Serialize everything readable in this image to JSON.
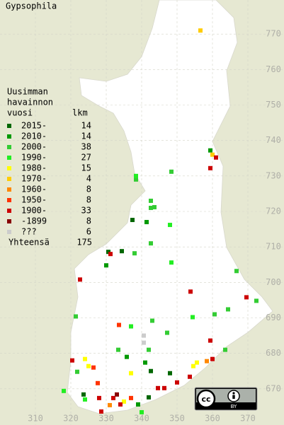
{
  "chart_data": {
    "type": "scatter",
    "title": "Gypsophila",
    "legend_title": [
      "Uusimman",
      "havainnon",
      "vuosi"
    ],
    "legend_count_header": "lkm",
    "total_label": "Yhteensä",
    "total": 175,
    "xlim": [
      300,
      380.2
    ],
    "ylim": [
      659.8,
      779.6
    ],
    "xticks": [
      310,
      320,
      330,
      340,
      350,
      360,
      370
    ],
    "yticks": [
      670,
      680,
      690,
      700,
      710,
      720,
      730,
      740,
      750,
      760,
      770
    ],
    "grid": true,
    "series": [
      {
        "name": "2015-",
        "color": "#006600",
        "count": 14,
        "x": [
          337.4,
          330.6,
          334.4,
          342.6,
          348,
          323.6,
          342
        ],
        "y": [
          717.6,
          708.6,
          708.8,
          675,
          674.4,
          668.4,
          667.6
        ]
      },
      {
        "name": "2010-",
        "color": "#009900",
        "count": 14,
        "x": [
          359.4,
          341.4,
          330,
          335.8,
          341,
          339
        ],
        "y": [
          737.2,
          717,
          704.8,
          679,
          677.4,
          665.6
        ]
      },
      {
        "name": "2000-",
        "color": "#33cc33",
        "count": 38,
        "x": [
          348.4,
          338.4,
          342.6,
          342.6,
          343.6,
          342.6,
          338,
          366.8,
          372.4,
          364.4,
          360.6,
          343,
          321.4,
          347.2,
          363.6,
          333.4,
          342,
          321.8
        ],
        "y": [
          731.2,
          729,
          723,
          721,
          721.2,
          711,
          708.2,
          703.2,
          694.8,
          692.4,
          691,
          689.2,
          690.4,
          685.8,
          681,
          681,
          681,
          674.8
        ]
      },
      {
        "name": "1990-",
        "color": "#22ee22",
        "count": 27,
        "x": [
          338.4,
          348,
          348.4,
          354.4,
          337,
          318,
          340,
          324
        ],
        "y": [
          730,
          716.2,
          705.6,
          690.2,
          687.6,
          669.4,
          663.4,
          667
        ]
      },
      {
        "name": "1980-",
        "color": "#ffff00",
        "count": 15,
        "x": [
          324,
          325,
          337,
          354.6,
          355.6,
          335
        ],
        "y": [
          678.4,
          676.4,
          674.4,
          676.4,
          677.4,
          666.4
        ]
      },
      {
        "name": "1970-",
        "color": "#ffcc00",
        "count": 4,
        "x": [
          356.6,
          360
        ],
        "y": [
          771,
          736
        ]
      },
      {
        "name": "1960-",
        "color": "#ff8800",
        "count": 8,
        "x": [
          358.4,
          331
        ],
        "y": [
          677.8,
          665.4
        ]
      },
      {
        "name": "1950-",
        "color": "#ff3300",
        "count": 8,
        "x": [
          333.6,
          326.4,
          337,
          327.6
        ],
        "y": [
          688,
          676,
          667.4,
          671.6
        ]
      },
      {
        "name": "1900-",
        "color": "#cc0000",
        "count": 33,
        "x": [
          361,
          359.4,
          331.2,
          322.6,
          353.8,
          369.6,
          359.4,
          320.4,
          360,
          353.6,
          350,
          346.4,
          344.6,
          328,
          332,
          334,
          328.6
        ],
        "y": [
          735.2,
          732.2,
          708,
          700.8,
          697.4,
          695.8,
          683.6,
          678,
          678.4,
          673.4,
          671.8,
          670.2,
          670.2,
          667.4,
          667.4,
          665.6,
          663.6
        ]
      },
      {
        "name": "-1899",
        "color": "#880000",
        "count": 8,
        "x": [
          333
        ],
        "y": [
          668.4
        ]
      },
      {
        "name": "???",
        "color": "#cccccc",
        "count": 6,
        "x": [
          340.6,
          340.6
        ],
        "y": [
          685,
          683
        ]
      }
    ]
  },
  "license": {
    "cc": "cc",
    "by": "BY"
  }
}
